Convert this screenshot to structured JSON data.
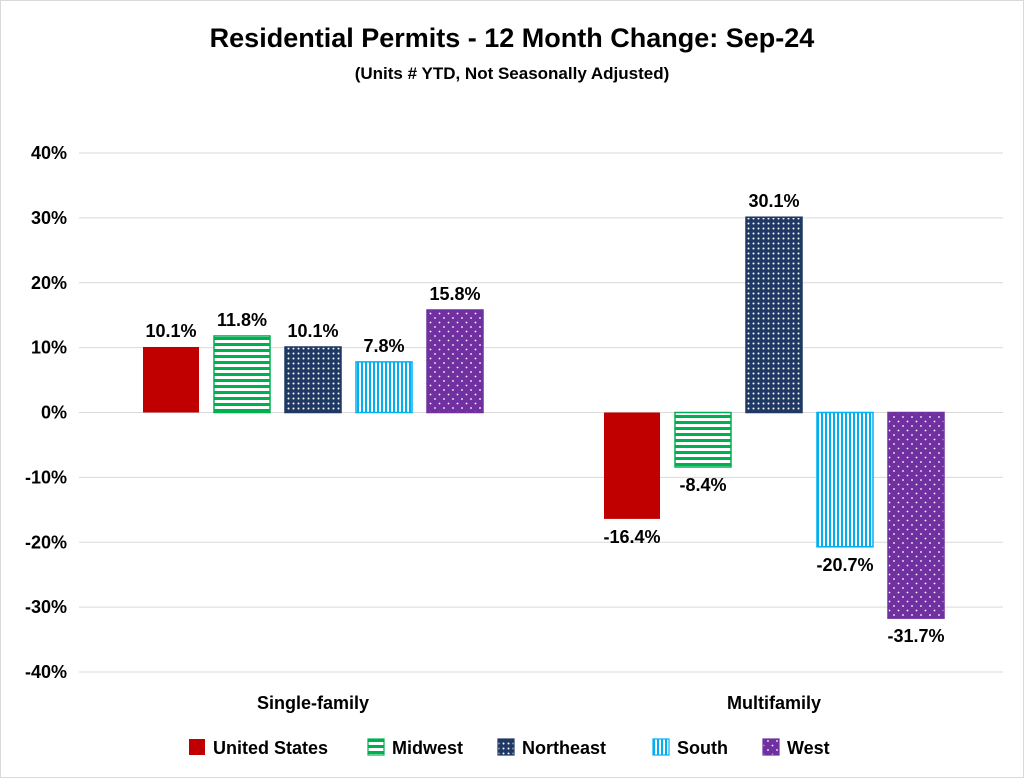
{
  "chart_data": {
    "type": "bar",
    "title": "Residential Permits - 12 Month Change:  Sep-24",
    "subtitle": "(Units # YTD, Not Seasonally Adjusted)",
    "xlabel": "",
    "ylabel": "",
    "categories": [
      "Single-family",
      "Multifamily"
    ],
    "ylim": [
      -40,
      40
    ],
    "yticks": [
      40,
      30,
      20,
      10,
      0,
      -10,
      -20,
      -30,
      -40
    ],
    "ytick_labels": [
      "40%",
      "30%",
      "20%",
      "10%",
      "0%",
      "-10%",
      "-20%",
      "-30%",
      "-40%"
    ],
    "grid": true,
    "legend_position": "bottom",
    "series": [
      {
        "name": "United States",
        "values": [
          10.1,
          -16.4
        ],
        "labels": [
          "10.1%",
          "-16.4%"
        ],
        "color": "#c00000",
        "pattern": "solid"
      },
      {
        "name": "Midwest",
        "values": [
          11.8,
          -8.4
        ],
        "labels": [
          "11.8%",
          "-8.4%"
        ],
        "color": "#00b050",
        "pattern": "horizontal-stripes"
      },
      {
        "name": "Northeast",
        "values": [
          10.1,
          30.1
        ],
        "labels": [
          "10.1%",
          "30.1%"
        ],
        "color": "#1f3864",
        "pattern": "dots"
      },
      {
        "name": "South",
        "values": [
          7.8,
          -20.7
        ],
        "labels": [
          "7.8%",
          "-20.7%"
        ],
        "color": "#00b0f0",
        "pattern": "vertical-stripes"
      },
      {
        "name": "West",
        "values": [
          15.8,
          -31.7
        ],
        "labels": [
          "15.8%",
          "-31.7%"
        ],
        "color": "#7030a0",
        "pattern": "sparse-dots"
      }
    ]
  }
}
